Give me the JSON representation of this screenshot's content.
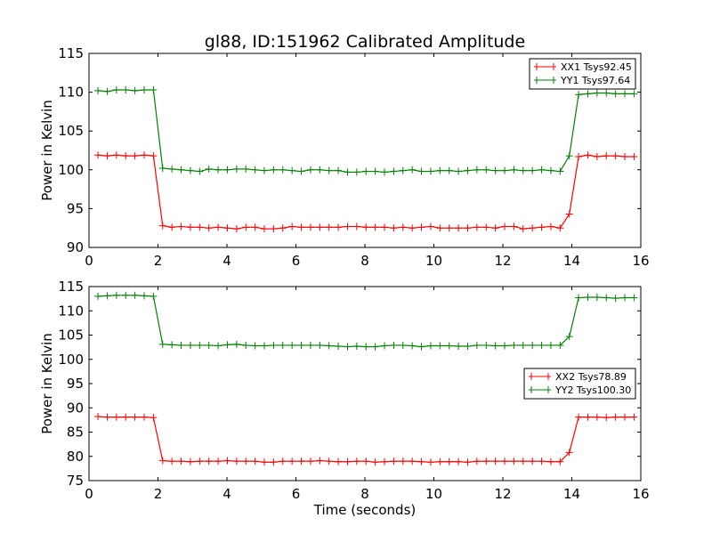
{
  "chart_data": [
    {
      "type": "line",
      "title": "gl88, ID:151962 Calibrated Amplitude",
      "xlabel": "",
      "ylabel": "Power in Kelvin",
      "xlim": [
        0,
        16
      ],
      "ylim": [
        90,
        115
      ],
      "xticks": [
        0,
        2,
        4,
        6,
        8,
        10,
        12,
        14,
        16
      ],
      "yticks": [
        90,
        95,
        100,
        105,
        110,
        115
      ],
      "legend": "top-right",
      "x_start": 0.26,
      "x_step": 0.268,
      "series": [
        {
          "name": "XX1 Tsys92.45",
          "color": "#ff0000",
          "values": [
            101.9,
            101.8,
            101.9,
            101.8,
            101.8,
            101.9,
            101.8,
            92.8,
            92.6,
            92.7,
            92.6,
            92.6,
            92.5,
            92.6,
            92.5,
            92.4,
            92.6,
            92.6,
            92.4,
            92.4,
            92.5,
            92.7,
            92.6,
            92.6,
            92.6,
            92.6,
            92.6,
            92.7,
            92.7,
            92.6,
            92.6,
            92.6,
            92.5,
            92.6,
            92.5,
            92.6,
            92.7,
            92.5,
            92.5,
            92.5,
            92.5,
            92.6,
            92.6,
            92.5,
            92.7,
            92.7,
            92.4,
            92.5,
            92.6,
            92.7,
            92.5,
            94.3,
            101.7,
            101.9,
            101.7,
            101.8,
            101.8,
            101.7,
            101.7
          ]
        },
        {
          "name": "YY1 Tsys97.64",
          "color": "#008000",
          "values": [
            110.2,
            110.1,
            110.3,
            110.3,
            110.2,
            110.3,
            110.3,
            100.2,
            100.1,
            100.0,
            99.9,
            99.8,
            100.1,
            100.0,
            100.0,
            100.1,
            100.1,
            100.0,
            99.9,
            100.0,
            100.0,
            99.9,
            99.8,
            100.0,
            100.0,
            99.9,
            99.9,
            99.7,
            99.7,
            99.8,
            99.8,
            99.7,
            99.8,
            99.9,
            100.0,
            99.8,
            99.8,
            99.9,
            99.9,
            99.8,
            99.9,
            100.0,
            100.0,
            99.9,
            99.9,
            100.0,
            99.9,
            99.9,
            100.0,
            99.9,
            99.8,
            101.8,
            109.7,
            109.8,
            109.9,
            109.9,
            109.8,
            109.8,
            109.8
          ]
        }
      ]
    },
    {
      "type": "line",
      "title": "",
      "xlabel": "Time (seconds)",
      "ylabel": "Power in Kelvin",
      "xlim": [
        0,
        16
      ],
      "ylim": [
        75,
        115
      ],
      "xticks": [
        0,
        2,
        4,
        6,
        8,
        10,
        12,
        14,
        16
      ],
      "yticks": [
        75,
        80,
        85,
        90,
        95,
        100,
        105,
        110,
        115
      ],
      "legend": "center-right",
      "x_start": 0.26,
      "x_step": 0.268,
      "series": [
        {
          "name": "XX2 Tsys78.89",
          "color": "#ff0000",
          "values": [
            88.2,
            88.1,
            88.1,
            88.1,
            88.1,
            88.1,
            88.0,
            79.1,
            79.0,
            79.0,
            78.9,
            79.0,
            79.0,
            79.0,
            79.1,
            79.0,
            79.0,
            79.0,
            78.8,
            78.8,
            79.0,
            79.0,
            79.0,
            79.0,
            79.1,
            79.0,
            78.9,
            78.9,
            79.0,
            79.0,
            78.8,
            78.9,
            79.0,
            79.0,
            79.0,
            78.9,
            78.8,
            78.9,
            78.9,
            78.9,
            78.8,
            79.0,
            79.0,
            79.0,
            79.0,
            79.0,
            79.0,
            79.0,
            79.0,
            78.9,
            78.9,
            80.8,
            88.1,
            88.1,
            88.1,
            88.0,
            88.1,
            88.1,
            88.1
          ]
        },
        {
          "name": "YY2 Tsys100.30",
          "color": "#008000",
          "values": [
            113.0,
            113.1,
            113.2,
            113.2,
            113.2,
            113.1,
            113.0,
            103.1,
            103.0,
            102.9,
            102.9,
            102.9,
            102.9,
            102.8,
            103.0,
            103.1,
            102.9,
            102.8,
            102.8,
            102.9,
            102.9,
            102.9,
            102.9,
            102.9,
            102.9,
            102.8,
            102.7,
            102.6,
            102.7,
            102.6,
            102.6,
            102.8,
            102.9,
            102.9,
            102.8,
            102.6,
            102.8,
            102.8,
            102.8,
            102.7,
            102.7,
            102.9,
            102.9,
            102.8,
            102.8,
            102.9,
            102.9,
            102.9,
            102.9,
            102.9,
            102.9,
            104.7,
            112.7,
            112.8,
            112.8,
            112.7,
            112.6,
            112.7,
            112.7
          ]
        }
      ]
    }
  ]
}
